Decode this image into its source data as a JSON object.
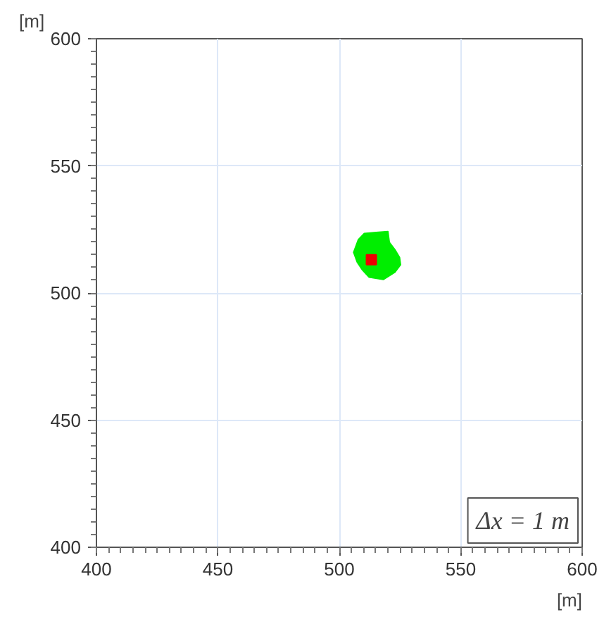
{
  "chart_data": {
    "type": "scatter",
    "xlabel": "[m]",
    "ylabel": "[m]",
    "xlim": [
      400,
      600
    ],
    "ylim": [
      400,
      600
    ],
    "xticks": [
      400,
      450,
      500,
      550,
      600
    ],
    "yticks": [
      400,
      450,
      500,
      550,
      600
    ],
    "grid": true,
    "annotations": [
      "Δx = 1 m"
    ],
    "series": [
      {
        "type": "area",
        "color": "#00ee00",
        "x": [
          505.9,
          507.8,
          510.3,
          515.2,
          520.0,
          520.6,
          522.9,
          524.8,
          525.2,
          522.9,
          518.1,
          512.3,
          509.4,
          507.4
        ],
        "values": [
          516.0,
          520.9,
          523.4,
          523.8,
          524.2,
          519.9,
          517.0,
          514.0,
          511.1,
          508.2,
          505.3,
          506.2,
          509.2,
          512.1
        ]
      },
      {
        "color": "#ee0000",
        "marker": "square",
        "x": [
          513.2
        ],
        "values": [
          513.1
        ]
      }
    ]
  }
}
